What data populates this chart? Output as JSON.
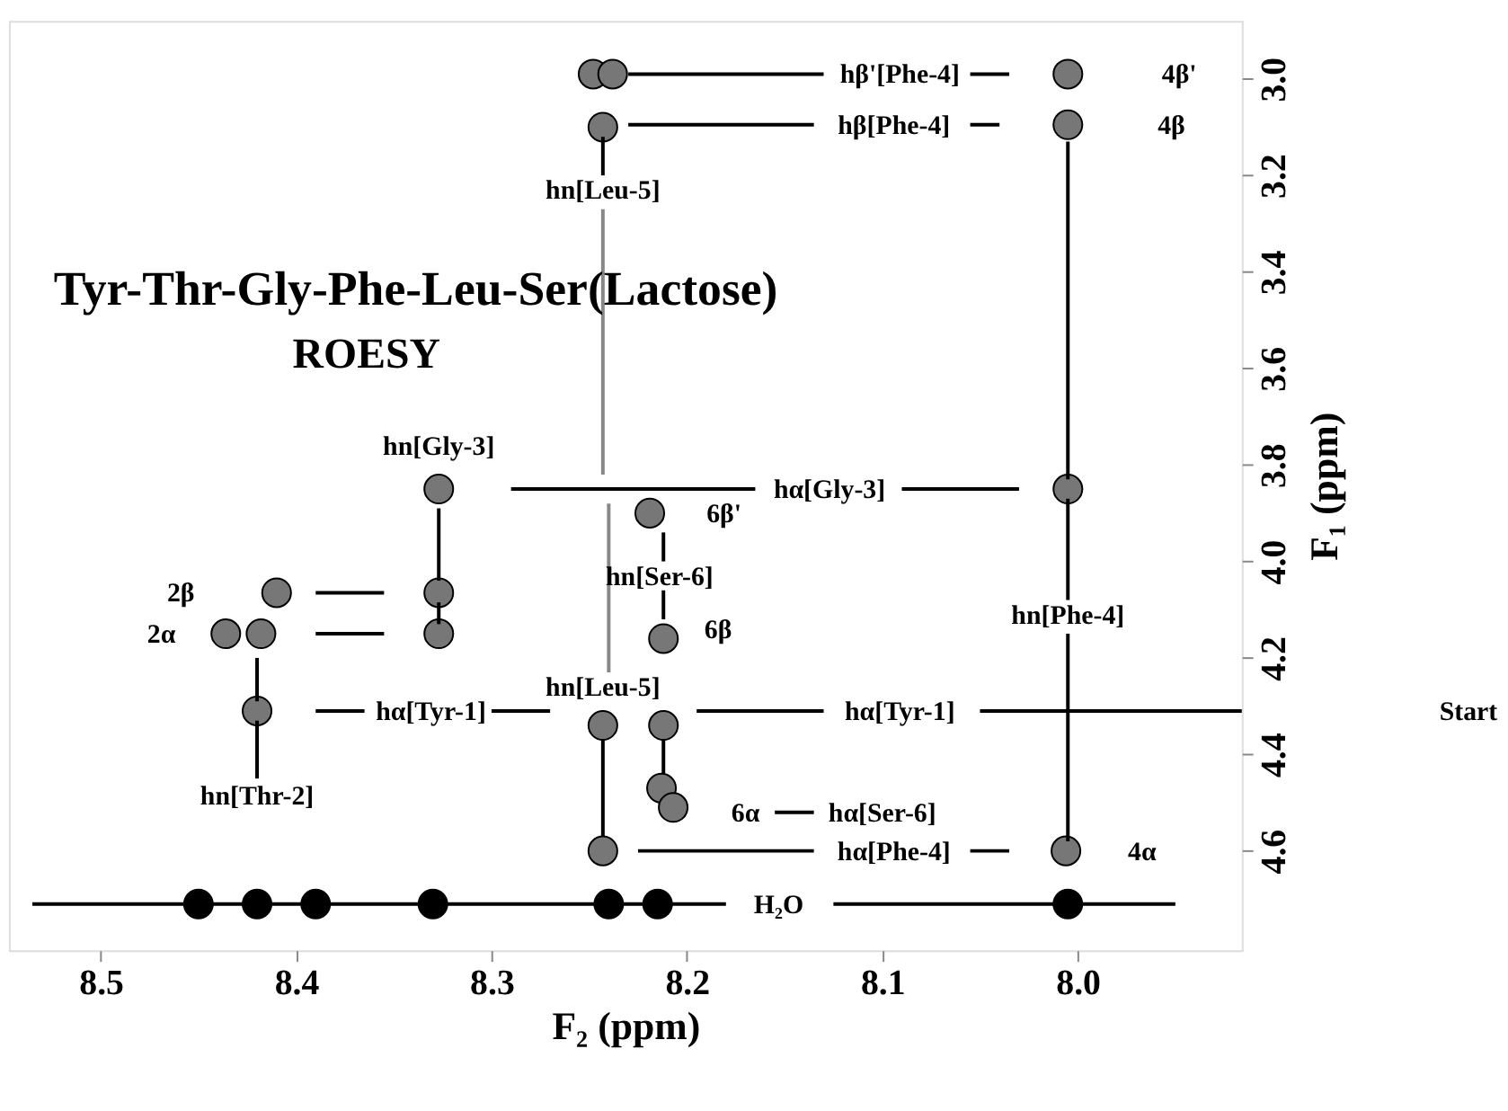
{
  "chart_data": {
    "type": "scatter",
    "title": "Tyr-Thr-Gly-Phe-Leu-Ser(Lactose)",
    "subtitle": "ROESY",
    "xlabel": "F₂ (ppm)",
    "ylabel": "F₁ (ppm)",
    "xlim": [
      8.547,
      7.916
    ],
    "ylim": [
      4.806,
      2.88
    ],
    "xticks": [
      {
        "value": 8.5,
        "label": "8.5"
      },
      {
        "value": 8.4,
        "label": "8.4"
      },
      {
        "value": 8.3,
        "label": "8.3"
      },
      {
        "value": 8.2,
        "label": "8.2"
      },
      {
        "value": 8.1,
        "label": "8.1"
      },
      {
        "value": 8.0,
        "label": "8.0"
      }
    ],
    "yticks": [
      {
        "value": 3.0,
        "label": "3.0"
      },
      {
        "value": 3.2,
        "label": "3.2"
      },
      {
        "value": 3.4,
        "label": "3.4"
      },
      {
        "value": 3.6,
        "label": "3.6"
      },
      {
        "value": 3.8,
        "label": "3.8"
      },
      {
        "value": 4.0,
        "label": "4.0"
      },
      {
        "value": 4.2,
        "label": "4.2"
      },
      {
        "value": 4.4,
        "label": "4.4"
      },
      {
        "value": 4.6,
        "label": "4.6"
      }
    ],
    "grid": false,
    "series": [
      {
        "marker": "circle",
        "color": "#777777",
        "x": [
          8.005,
          8.005,
          8.248,
          8.238,
          8.243,
          8.005,
          8.327,
          8.219,
          8.212,
          8.327,
          8.327,
          8.41,
          8.436,
          8.418,
          8.42,
          8.243,
          8.212,
          8.213,
          8.207,
          8.243,
          8.006
        ],
        "values": [
          2.99,
          3.095,
          2.99,
          2.99,
          3.1,
          3.85,
          3.85,
          3.9,
          4.16,
          4.065,
          4.15,
          4.065,
          4.15,
          4.15,
          4.31,
          4.34,
          4.34,
          4.47,
          4.51,
          4.6,
          4.6
        ]
      },
      {
        "marker": "circle",
        "color": "#000000",
        "x": [
          8.45,
          8.42,
          8.39,
          8.33,
          8.24,
          8.215,
          8.005
        ],
        "values": [
          4.71,
          4.71,
          4.71,
          4.71,
          4.71,
          4.71,
          4.71
        ]
      },
      {
        "type": "line",
        "color": "#000000",
        "x": [
          7.916,
          8.05
        ],
        "values": [
          4.31,
          4.31
        ]
      },
      {
        "type": "line",
        "color": "#000000",
        "x": [
          8.13,
          8.195
        ],
        "values": [
          4.31,
          4.31
        ]
      },
      {
        "type": "line",
        "color": "#000000",
        "x": [
          8.27,
          8.3
        ],
        "values": [
          4.31,
          4.31
        ]
      },
      {
        "type": "line",
        "color": "#000000",
        "x": [
          8.365,
          8.39
        ],
        "values": [
          4.31,
          4.31
        ]
      },
      {
        "type": "line",
        "color": "#000000",
        "x": [
          8.42,
          8.42
        ],
        "values": [
          4.33,
          4.45
        ]
      },
      {
        "type": "line",
        "color": "#000000",
        "x": [
          8.42,
          8.42
        ],
        "values": [
          4.29,
          4.2
        ]
      },
      {
        "type": "line",
        "color": "#000000",
        "x": [
          8.39,
          8.355
        ],
        "values": [
          4.065,
          4.065
        ]
      },
      {
        "type": "line",
        "color": "#000000",
        "x": [
          8.39,
          8.355
        ],
        "values": [
          4.15,
          4.15
        ]
      },
      {
        "type": "line",
        "color": "#000000",
        "x": [
          8.327,
          8.327
        ],
        "values": [
          4.13,
          4.085
        ]
      },
      {
        "type": "line",
        "color": "#000000",
        "x": [
          8.327,
          8.327
        ],
        "values": [
          4.04,
          3.89
        ]
      },
      {
        "type": "line",
        "color": "#000000",
        "x": [
          8.29,
          8.165
        ],
        "values": [
          3.85,
          3.85
        ]
      },
      {
        "type": "line",
        "color": "#000000",
        "x": [
          8.09,
          8.03
        ],
        "values": [
          3.85,
          3.85
        ]
      },
      {
        "type": "line",
        "color": "#000000",
        "x": [
          8.005,
          8.005
        ],
        "values": [
          3.13,
          3.83
        ]
      },
      {
        "type": "line",
        "color": "#000000",
        "x": [
          8.005,
          8.005
        ],
        "values": [
          3.87,
          4.08
        ]
      },
      {
        "type": "line",
        "color": "#000000",
        "x": [
          8.005,
          8.005
        ],
        "values": [
          4.15,
          4.58
        ]
      },
      {
        "type": "line",
        "color": "#000000",
        "x": [
          8.23,
          8.13
        ],
        "values": [
          2.99,
          2.99
        ]
      },
      {
        "type": "line",
        "color": "#000000",
        "x": [
          8.055,
          8.035
        ],
        "values": [
          2.99,
          2.99
        ]
      },
      {
        "type": "line",
        "color": "#000000",
        "x": [
          8.23,
          8.135
        ],
        "values": [
          3.095,
          3.095
        ]
      },
      {
        "type": "line",
        "color": "#000000",
        "x": [
          8.055,
          8.04
        ],
        "values": [
          3.095,
          3.095
        ]
      },
      {
        "type": "line",
        "color": "#000000",
        "x": [
          8.243,
          8.243
        ],
        "values": [
          3.12,
          3.2
        ]
      },
      {
        "type": "line",
        "color": "#888888",
        "x": [
          8.243,
          8.243
        ],
        "values": [
          3.27,
          3.82
        ]
      },
      {
        "type": "line",
        "color": "#888888",
        "x": [
          8.24,
          8.24
        ],
        "values": [
          3.88,
          4.23
        ]
      },
      {
        "type": "line",
        "color": "#000000",
        "x": [
          8.212,
          8.212
        ],
        "values": [
          3.94,
          4.0
        ]
      },
      {
        "type": "line",
        "color": "#000000",
        "x": [
          8.212,
          8.212
        ],
        "values": [
          4.06,
          4.12
        ]
      },
      {
        "type": "line",
        "color": "#000000",
        "x": [
          8.243,
          8.243
        ],
        "values": [
          4.57,
          4.37
        ]
      },
      {
        "type": "line",
        "color": "#000000",
        "x": [
          8.212,
          8.212
        ],
        "values": [
          4.37,
          4.44
        ]
      },
      {
        "type": "line",
        "color": "#000000",
        "x": [
          8.155,
          8.135
        ],
        "values": [
          4.52,
          4.52
        ]
      },
      {
        "type": "line",
        "color": "#000000",
        "x": [
          8.035,
          8.055
        ],
        "values": [
          4.6,
          4.6
        ]
      },
      {
        "type": "line",
        "color": "#000000",
        "x": [
          8.135,
          8.225
        ],
        "values": [
          4.6,
          4.6
        ]
      },
      {
        "type": "line",
        "color": "#000000",
        "x": [
          8.535,
          8.18
        ],
        "values": [
          4.71,
          4.71
        ]
      },
      {
        "type": "line",
        "color": "#000000",
        "x": [
          8.125,
          7.95
        ],
        "values": [
          4.71,
          4.71
        ]
      }
    ],
    "annotations": [
      "hβ'[Phe-4]",
      "4β'",
      "hβ[Phe-4]",
      "4β",
      "hn[Leu-5]",
      "hn[Gly-3]",
      "hα[Gly-3]",
      "6β'",
      "hn[Ser-6]",
      "2β",
      "2α",
      "6β",
      "hn[Phe-4]",
      "hn[Leu-5]",
      "hα[Tyr-1]",
      "hα[Tyr-1]",
      "Start",
      "hn[Thr-2]",
      "6α",
      "hα[Ser-6]",
      "hα[Phe-4]",
      "4α",
      "H₂O"
    ]
  }
}
